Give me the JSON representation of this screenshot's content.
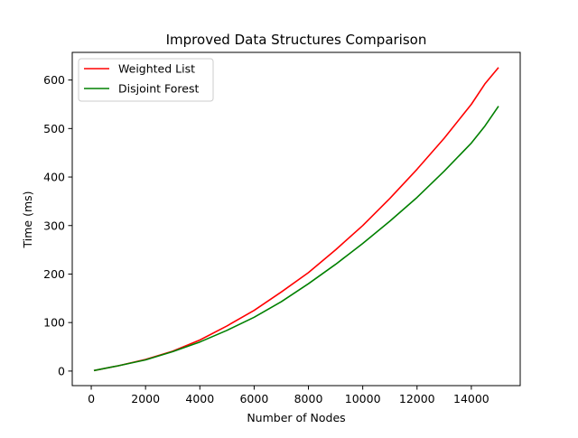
{
  "chart_data": {
    "type": "line",
    "title": "Improved Data Structures Comparison",
    "xlabel": "Number of Nodes",
    "ylabel": "Time (ms)",
    "xlim": [
      -700,
      15800
    ],
    "ylim": [
      -30,
      657
    ],
    "xticks": [
      0,
      2000,
      4000,
      6000,
      8000,
      10000,
      12000,
      14000
    ],
    "xtick_labels": [
      "0",
      "2000",
      "4000",
      "6000",
      "8000",
      "10000",
      "12000",
      "14000"
    ],
    "yticks": [
      0,
      100,
      200,
      300,
      400,
      500,
      600
    ],
    "ytick_labels": [
      "0",
      "100",
      "200",
      "300",
      "400",
      "500",
      "600"
    ],
    "grid": false,
    "legend_position": "upper-left",
    "x": [
      100,
      1000,
      2000,
      3000,
      4000,
      5000,
      6000,
      7000,
      8000,
      9000,
      10000,
      11000,
      12000,
      13000,
      14000,
      14500,
      15000
    ],
    "series": [
      {
        "name": "Weighted List",
        "color": "#ff0000",
        "values": [
          1,
          11,
          24,
          41,
          64,
          93,
          125,
          163,
          203,
          250,
          300,
          356,
          416,
          480,
          550,
          592,
          626
        ]
      },
      {
        "name": "Disjoint Forest",
        "color": "#008000",
        "values": [
          1,
          11,
          23,
          40,
          60,
          84,
          111,
          143,
          180,
          220,
          263,
          309,
          358,
          412,
          470,
          505,
          546
        ]
      }
    ]
  }
}
